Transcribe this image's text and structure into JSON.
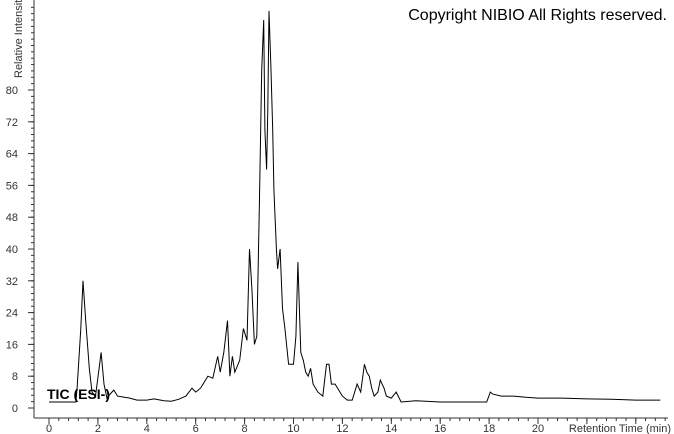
{
  "chart_data": {
    "type": "line",
    "title": "",
    "annotations": {
      "copyright": "Copyright NIBIO All Rights reserved.",
      "trace": "TIC (ESI-)"
    },
    "xlabel": "Retention Time (min)",
    "ylabel": "Relative Intensity",
    "xlim": [
      0,
      25.5
    ],
    "ylim": [
      0,
      102
    ],
    "x_ticks": [
      0,
      2,
      4,
      6,
      8,
      10,
      12,
      14,
      16,
      18,
      20
    ],
    "y_ticks": [
      0,
      8,
      16,
      24,
      32,
      40,
      48,
      56,
      64,
      72,
      80
    ],
    "grid": false,
    "line_color": "#000000",
    "series": [
      {
        "x": [
          0,
          1.1,
          1.15,
          1.3,
          1.39,
          1.5,
          1.65,
          1.76,
          1.9,
          2.05,
          2.13,
          2.25,
          2.37,
          2.5,
          2.65,
          2.8,
          3.0,
          3.3,
          3.6,
          4.0,
          4.3,
          4.7,
          5.0,
          5.3,
          5.6,
          5.85,
          6.0,
          6.2,
          6.5,
          6.7,
          6.9,
          7.0,
          7.15,
          7.3,
          7.4,
          7.5,
          7.6,
          7.8,
          7.95,
          8.1,
          8.2,
          8.3,
          8.4,
          8.5,
          8.6,
          8.7,
          8.78,
          8.83,
          8.9,
          8.95,
          9.0,
          9.08,
          9.15,
          9.2,
          9.3,
          9.35,
          9.45,
          9.55,
          9.65,
          9.8,
          10.0,
          10.1,
          10.18,
          10.3,
          10.4,
          10.5,
          10.6,
          10.7,
          10.8,
          10.9,
          11.0,
          11.2,
          11.35,
          11.45,
          11.55,
          11.7,
          11.9,
          12.0,
          12.2,
          12.4,
          12.6,
          12.75,
          12.9,
          13.0,
          13.1,
          13.2,
          13.3,
          13.45,
          13.55,
          13.7,
          13.8,
          14.0,
          14.2,
          14.4,
          15.0,
          16.0,
          17.0,
          17.9,
          18.05,
          18.15,
          18.5,
          19.0,
          19.5,
          20.0,
          21.0,
          22.0,
          23.0,
          24.0,
          25.0
        ],
        "y": [
          1.5,
          1.5,
          5,
          20,
          32,
          22,
          10,
          4,
          3,
          10,
          14,
          6,
          2.5,
          3.5,
          4.5,
          3,
          2.8,
          2.5,
          2,
          2,
          2.3,
          1.8,
          1.7,
          2.2,
          3,
          5,
          4,
          5,
          8,
          7.5,
          13,
          9,
          14,
          22,
          8,
          13,
          9,
          12,
          20,
          17,
          40,
          30,
          16,
          18,
          50,
          85,
          97.6,
          70,
          60,
          75,
          99.9,
          85,
          70,
          55,
          40,
          35,
          40,
          25,
          20,
          11,
          11,
          18,
          36.7,
          14,
          12,
          9,
          8,
          10,
          6,
          5,
          4,
          3,
          11,
          11,
          6,
          6,
          4,
          3,
          2,
          2,
          6,
          4,
          11,
          9,
          8,
          5,
          3,
          4,
          7,
          5,
          3,
          2.5,
          4,
          1.5,
          1.8,
          1.5,
          1.5,
          1.5,
          4,
          3.5,
          3,
          3,
          2.7,
          2.5,
          2.5,
          2.3,
          2.2,
          2,
          2
        ]
      }
    ]
  }
}
